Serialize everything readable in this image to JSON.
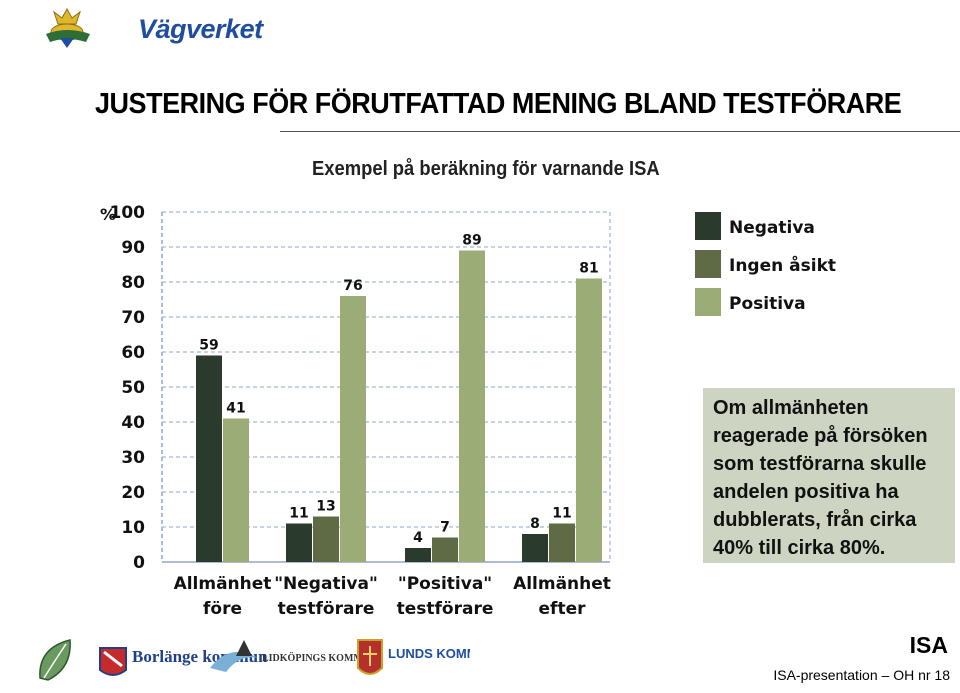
{
  "header": {
    "logo_text": "Vägverket",
    "title": "JUSTERING FÖR FÖRUTFATTAD MENING BLAND TESTFÖRARE",
    "subtitle": "Exempel på beräkning för varnande ISA"
  },
  "chart_data": {
    "type": "bar",
    "ylabel": "%",
    "ylim": [
      0,
      100
    ],
    "yticks": [
      0,
      10,
      20,
      30,
      40,
      50,
      60,
      70,
      80,
      90,
      100
    ],
    "grid": true,
    "legend_position": "top-right",
    "categories": [
      [
        "Allmänhet",
        "före"
      ],
      [
        "\"Negativa\"",
        "testförare"
      ],
      [
        "\"Positiva\"",
        "testförare"
      ],
      [
        "Allmänhet",
        "efter"
      ]
    ],
    "series": [
      {
        "name": "Negativa",
        "color": "#2a3a2c",
        "values": [
          59,
          11,
          4,
          8
        ]
      },
      {
        "name": "Ingen åsikt",
        "color": "#5e6b45",
        "values": [
          null,
          13,
          7,
          11
        ]
      },
      {
        "name": "Positiva",
        "color": "#9cac76",
        "values": [
          41,
          76,
          89,
          81
        ]
      }
    ]
  },
  "note": {
    "lines": [
      "Om allmänheten",
      "reagerade på försöken",
      "som testförarna skulle",
      "andelen positiva ha",
      "dubblerats, från cirka",
      "40% till cirka 80%."
    ]
  },
  "footer": {
    "logos": [
      "Borlänge kommun",
      "LIDKÖPINGS KOMMUN",
      "LUNDS KOMMUN"
    ],
    "isa": "ISA",
    "text": "ISA-presentation – OH nr 18"
  }
}
